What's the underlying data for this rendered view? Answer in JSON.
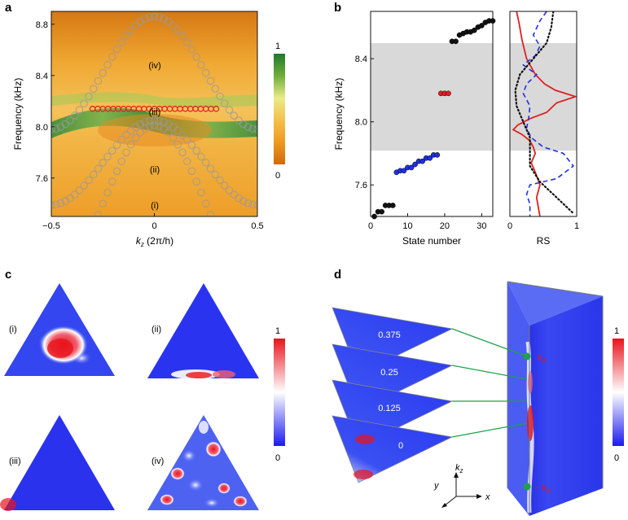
{
  "panels": {
    "a": {
      "letter": "a",
      "xlabel_k": "k",
      "xlabel_sub": "z",
      "xlabel_rest": " (2π/h)",
      "ylabel": "Frequency (kHz)",
      "xticks": [
        "−0.5",
        "0",
        "0.5"
      ],
      "yticks": [
        "7.6",
        "8.0",
        "8.4",
        "8.8"
      ],
      "colorbar": {
        "max": "1",
        "min": "0"
      },
      "band_labels": [
        "(iv)",
        "(iii)",
        "(ii)",
        "(i)"
      ]
    },
    "b": {
      "letter": "b",
      "ylabel": "Frequency (kHz)",
      "xlabel_left": "State number",
      "xlabel_right": "RS",
      "yticks": [
        "7.6",
        "8.0",
        "8.4"
      ],
      "xticks_left": [
        "0",
        "10",
        "20",
        "30"
      ],
      "xticks_right": [
        "0",
        "1"
      ]
    },
    "c": {
      "letter": "c",
      "labels": [
        "(i)",
        "(ii)",
        "(iii)",
        "(iv)"
      ],
      "colorbar": {
        "max": "1",
        "min": "0"
      }
    },
    "d": {
      "letter": "d",
      "slice_labels": [
        "0.375",
        "0.25",
        "0.125",
        "0"
      ],
      "kA_label": "k",
      "kA_sub": "A",
      "minus_kA_label": "− k",
      "axes": {
        "x": "x",
        "y": "y",
        "z": "k",
        "z_sub": "z"
      },
      "colorbar": {
        "max": "1",
        "min": "0"
      }
    }
  },
  "chart_data": [
    {
      "type": "scatter",
      "panel": "a",
      "xlabel": "kz (2π/h)",
      "ylabel": "Frequency (kHz)",
      "xlim": [
        -0.5,
        0.5
      ],
      "ylim": [
        7.3,
        8.9
      ],
      "series": [
        {
          "label": "(iv)",
          "color": "#a0a0a0",
          "function": "8.42 + 0.44*cos(2*pi*k)"
        },
        {
          "label": "(ii)",
          "color": "#a0a0a0",
          "function": "7.72 + 0.33*cos(2*pi*k)"
        },
        {
          "label": "(i)",
          "color": "#a0a0a0",
          "function": "7.40 + 0.61*cos(2*pi*k)"
        },
        {
          "label": "(iii)",
          "color": "#e02020",
          "x_range": [
            -0.3,
            0.3
          ],
          "value": 8.14
        }
      ]
    },
    {
      "type": "scatter",
      "panel": "b-left",
      "xlabel": "State number",
      "ylabel": "Frequency (kHz)",
      "xlim": [
        0,
        33
      ],
      "ylim": [
        7.4,
        8.7
      ],
      "gap_band": [
        7.82,
        8.5
      ],
      "series": [
        {
          "color": "#111111",
          "points": [
            [
              1,
              7.4
            ],
            [
              2,
              7.43
            ],
            [
              3,
              7.43
            ],
            [
              4,
              7.47
            ],
            [
              5,
              7.47
            ],
            [
              6,
              7.47
            ]
          ]
        },
        {
          "color": "#2030e0",
          "points": [
            [
              7,
              7.68
            ],
            [
              8,
              7.69
            ],
            [
              9,
              7.69
            ],
            [
              10,
              7.71
            ],
            [
              11,
              7.71
            ],
            [
              12,
              7.73
            ],
            [
              13,
              7.75
            ],
            [
              14,
              7.75
            ],
            [
              15,
              7.77
            ],
            [
              16,
              7.77
            ],
            [
              17,
              7.79
            ],
            [
              18,
              7.79
            ]
          ]
        },
        {
          "color": "#e02020",
          "points": [
            [
              19,
              8.18
            ],
            [
              20,
              8.18
            ],
            [
              21,
              8.18
            ]
          ]
        },
        {
          "color": "#111111",
          "points": [
            [
              22,
              8.51
            ],
            [
              23,
              8.51
            ],
            [
              24,
              8.55
            ],
            [
              25,
              8.56
            ],
            [
              26,
              8.57
            ],
            [
              27,
              8.57
            ],
            [
              28,
              8.58
            ],
            [
              29,
              8.6
            ],
            [
              30,
              8.61
            ],
            [
              31,
              8.63
            ],
            [
              32,
              8.64
            ],
            [
              33,
              8.64
            ]
          ]
        }
      ]
    },
    {
      "type": "line",
      "panel": "b-right",
      "xlabel": "RS",
      "xlim": [
        0,
        1
      ],
      "ylim": [
        7.4,
        8.7
      ],
      "series": [
        {
          "color": "#e02020",
          "style": "solid",
          "points": [
            [
              0.1,
              8.7
            ],
            [
              0.14,
              8.62
            ],
            [
              0.18,
              8.52
            ],
            [
              0.25,
              8.4
            ],
            [
              0.38,
              8.3
            ],
            [
              0.52,
              8.24
            ],
            [
              0.68,
              8.2
            ],
            [
              0.98,
              8.16
            ],
            [
              0.7,
              8.12
            ],
            [
              0.55,
              8.06
            ],
            [
              0.3,
              8.02
            ],
            [
              0.12,
              7.98
            ],
            [
              0.05,
              7.95
            ],
            [
              0.18,
              7.92
            ],
            [
              0.3,
              7.88
            ],
            [
              0.35,
              7.84
            ],
            [
              0.38,
              7.8
            ],
            [
              0.32,
              7.74
            ],
            [
              0.38,
              7.68
            ],
            [
              0.45,
              7.6
            ],
            [
              0.4,
              7.52
            ],
            [
              0.45,
              7.4
            ]
          ]
        },
        {
          "color": "#2030e0",
          "style": "dashed",
          "points": [
            [
              0.55,
              8.7
            ],
            [
              0.45,
              8.64
            ],
            [
              0.35,
              8.55
            ],
            [
              0.45,
              8.48
            ],
            [
              0.38,
              8.42
            ],
            [
              0.2,
              8.36
            ],
            [
              0.4,
              8.3
            ],
            [
              0.25,
              8.24
            ],
            [
              0.2,
              8.18
            ],
            [
              0.3,
              8.1
            ],
            [
              0.28,
              8.02
            ],
            [
              0.25,
              7.96
            ],
            [
              0.32,
              7.9
            ],
            [
              0.5,
              7.84
            ],
            [
              0.8,
              7.8
            ],
            [
              0.95,
              7.72
            ],
            [
              0.7,
              7.64
            ],
            [
              0.3,
              7.6
            ],
            [
              0.25,
              7.54
            ],
            [
              0.3,
              7.48
            ],
            [
              0.3,
              7.4
            ]
          ]
        },
        {
          "color": "#111111",
          "style": "dotted",
          "points": [
            [
              0.65,
              8.7
            ],
            [
              0.62,
              8.6
            ],
            [
              0.55,
              8.5
            ],
            [
              0.35,
              8.4
            ],
            [
              0.15,
              8.3
            ],
            [
              0.08,
              8.2
            ],
            [
              0.1,
              8.1
            ],
            [
              0.2,
              8.0
            ],
            [
              0.3,
              7.9
            ],
            [
              0.3,
              7.8
            ],
            [
              0.3,
              7.72
            ],
            [
              0.45,
              7.62
            ],
            [
              0.7,
              7.52
            ],
            [
              0.95,
              7.42
            ]
          ]
        }
      ]
    }
  ]
}
